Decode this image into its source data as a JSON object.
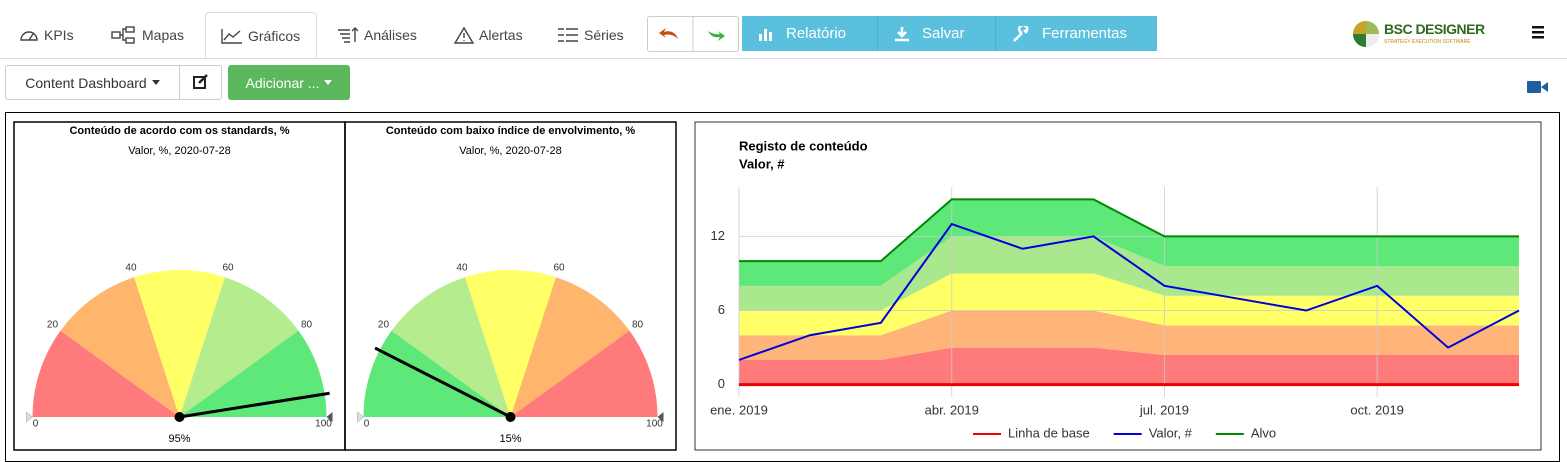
{
  "tabs": [
    "KPIs",
    "Mapas",
    "Gráficos",
    "Análises",
    "Alertas",
    "Séries"
  ],
  "buttons": [
    "Relatório",
    "Salvar",
    "Ferramentas"
  ],
  "logo": {
    "name": "BSC DESIGNER",
    "tagline": "STRATEGY EXECUTION SOFTWARE"
  },
  "dashboard_select": "Content Dashboard",
  "add_button": "Adicionar ...",
  "chart_data": [
    {
      "type": "gauge",
      "title": "Conteúdo de acordo com os standards, %",
      "subtitle": "Valor, %, 2020-07-28",
      "range": [
        0,
        100
      ],
      "ticks": [
        0,
        20,
        40,
        60,
        80,
        100
      ],
      "values": [
        95
      ],
      "value_labels": [
        "95%"
      ],
      "needle_color": "#000000",
      "bands": [
        {
          "from": 0,
          "to": 20,
          "color": "#ff7b7b"
        },
        {
          "from": 20,
          "to": 40,
          "color": "#ffb56b"
        },
        {
          "from": 40,
          "to": 60,
          "color": "#ffff66"
        },
        {
          "from": 60,
          "to": 80,
          "color": "#b5ec8e"
        },
        {
          "from": 80,
          "to": 100,
          "color": "#5fe87a"
        }
      ]
    },
    {
      "type": "gauge",
      "title": "Conteúdo com baixo índice de envolvimento, %",
      "subtitle": "Valor, %, 2020-07-28",
      "range": [
        0,
        100
      ],
      "ticks": [
        0,
        20,
        40,
        60,
        80,
        100
      ],
      "values": [
        15
      ],
      "value_labels": [
        "15%"
      ],
      "needle_color": "#000000",
      "bands": [
        {
          "from": 0,
          "to": 20,
          "color": "#5fe87a"
        },
        {
          "from": 20,
          "to": 40,
          "color": "#b5ec8e"
        },
        {
          "from": 40,
          "to": 60,
          "color": "#ffff66"
        },
        {
          "from": 60,
          "to": 80,
          "color": "#ffb56b"
        },
        {
          "from": 80,
          "to": 100,
          "color": "#ff7b7b"
        }
      ]
    },
    {
      "type": "line",
      "title": "Registo de conteúdo",
      "subtitle": "Valor, #",
      "categories": [
        "ene. 2019",
        null,
        null,
        "abr. 2019",
        null,
        null,
        "jul. 2019",
        null,
        null,
        "oct. 2019",
        null,
        null
      ],
      "ylim": [
        -1,
        16
      ],
      "yticks": [
        0,
        6,
        12
      ],
      "grid": true,
      "legend": "bottom",
      "bands": [
        {
          "color": "#ff7b7b",
          "values": [
            2,
            2,
            2,
            3,
            3,
            3,
            2.4,
            2.4,
            2.4,
            2.4,
            2.4,
            2.4
          ]
        },
        {
          "color": "#ffb57a",
          "values": [
            2,
            2,
            2,
            3,
            3,
            3,
            2.4,
            2.4,
            2.4,
            2.4,
            2.4,
            2.4
          ]
        },
        {
          "color": "#ffff66",
          "values": [
            2,
            2,
            2,
            3,
            3,
            3,
            2.4,
            2.4,
            2.4,
            2.4,
            2.4,
            2.4
          ]
        },
        {
          "color": "#aae88e",
          "values": [
            2,
            2,
            2,
            3,
            3,
            3,
            2.4,
            2.4,
            2.4,
            2.4,
            2.4,
            2.4
          ]
        },
        {
          "color": "#5fe87a",
          "values": [
            2,
            2,
            2,
            3,
            3,
            3,
            2.4,
            2.4,
            2.4,
            2.4,
            2.4,
            2.4
          ]
        }
      ],
      "series": [
        {
          "name": "Linha de base",
          "color": "#ee0000",
          "values": [
            0,
            0,
            0,
            0,
            0,
            0,
            0,
            0,
            0,
            0,
            0,
            0
          ]
        },
        {
          "name": "Valor, #",
          "color": "#0000dd",
          "values": [
            2,
            4,
            5,
            13,
            11,
            12,
            8,
            7,
            6,
            8,
            3,
            6
          ]
        },
        {
          "name": "Alvo",
          "color": "#008800",
          "values": [
            10,
            10,
            10,
            15,
            15,
            15,
            12,
            12,
            12,
            12,
            12,
            12
          ]
        }
      ]
    }
  ]
}
